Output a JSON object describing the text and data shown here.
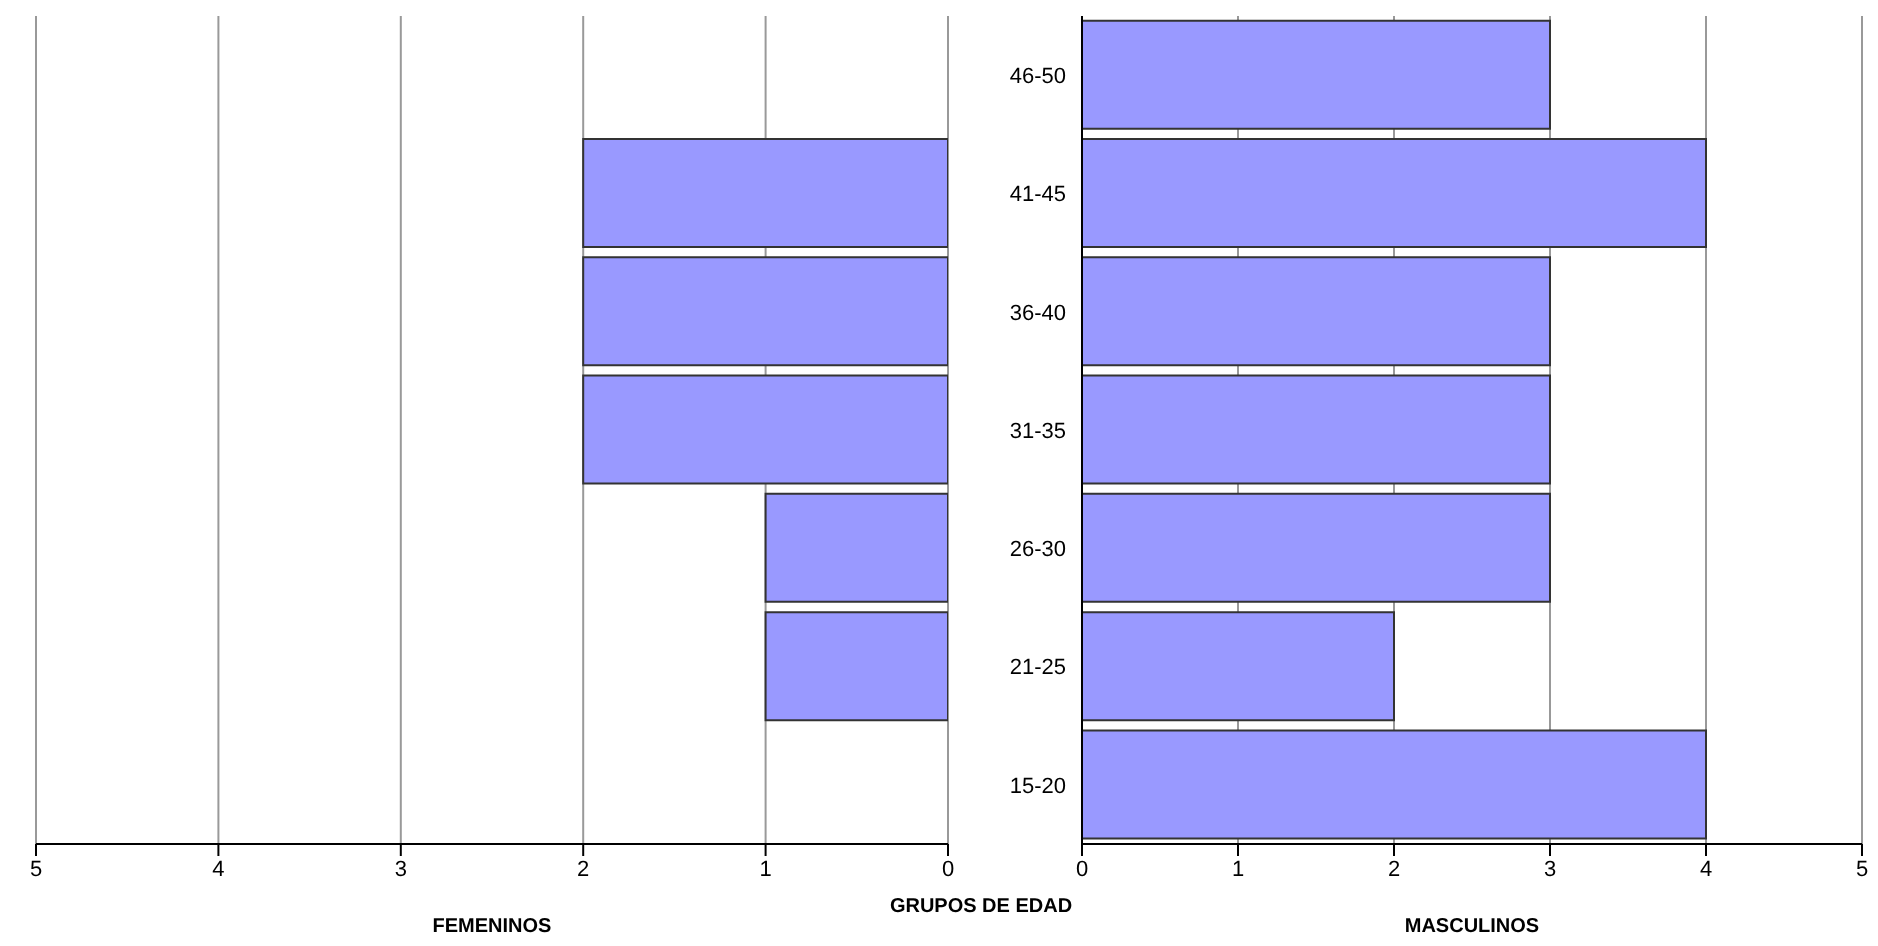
{
  "chart_data": [
    {
      "type": "bar",
      "orientation": "horizontal",
      "categories": [
        null,
        null,
        null,
        null,
        null,
        null,
        null
      ],
      "values": [
        0,
        2,
        2,
        2,
        1,
        1,
        0
      ],
      "color": "#9999ff",
      "xlim": [
        5,
        0
      ],
      "xticks": [
        5,
        4,
        3,
        2,
        1,
        0
      ],
      "xlabel": "FEMENINOS",
      "grid": "x",
      "tick_labels": "x"
    },
    {
      "type": "bar",
      "orientation": "horizontal",
      "categories": [
        "46-50",
        "41-45",
        "36-40",
        "31-35",
        "26-30",
        "21-25",
        "15-20"
      ],
      "values": [
        3,
        4,
        3,
        3,
        3,
        2,
        4
      ],
      "color": "#9999ff",
      "xlim": [
        0,
        5
      ],
      "xticks": [
        0,
        1,
        2,
        3,
        4,
        5
      ],
      "xlabel": "MASCULINOS",
      "ylabel": "GRUPOS DE EDAD",
      "grid": "x"
    }
  ]
}
